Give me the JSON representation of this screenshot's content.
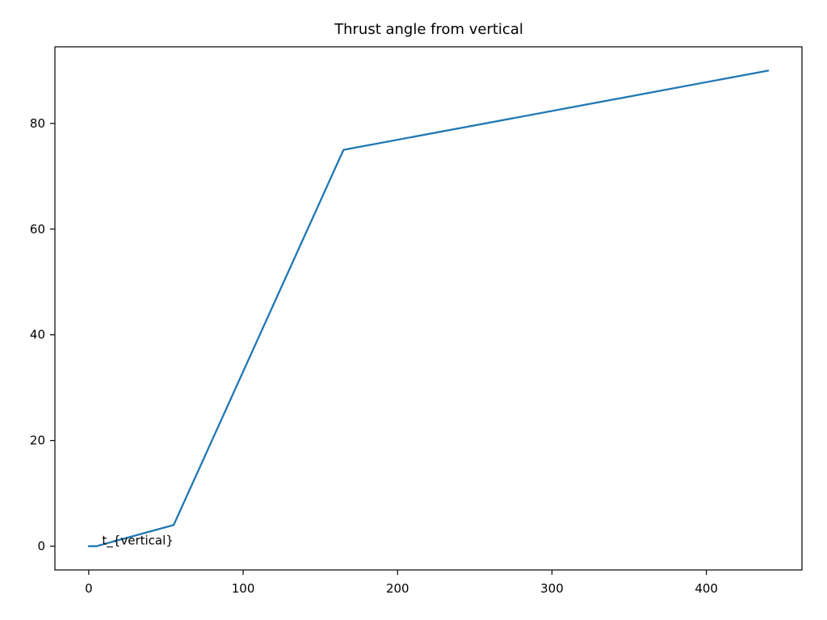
{
  "chart_data": {
    "type": "line",
    "title": "Thrust angle from vertical",
    "xlabel": "",
    "ylabel": "",
    "xlim": [
      -21.9,
      461.9
    ],
    "ylim": [
      -4.5,
      94.5
    ],
    "xticks": [
      0,
      100,
      200,
      300,
      400
    ],
    "yticks": [
      0,
      20,
      40,
      60,
      80
    ],
    "grid": false,
    "series": [
      {
        "color": "#1f77b4",
        "x": [
          0,
          5,
          55,
          165,
          440
        ],
        "y": [
          0,
          0,
          4,
          75,
          90
        ]
      }
    ],
    "annotations": [
      {
        "text": "t_{vertical}",
        "x": 5,
        "y": 0
      }
    ]
  }
}
